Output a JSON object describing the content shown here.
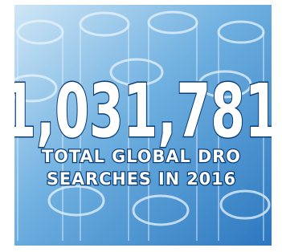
{
  "graphic": {
    "headline_number": "1,031,781",
    "caption_lines": [
      "TOTAL GLOBAL DRO",
      "SEARCHES IN 2016"
    ]
  }
}
